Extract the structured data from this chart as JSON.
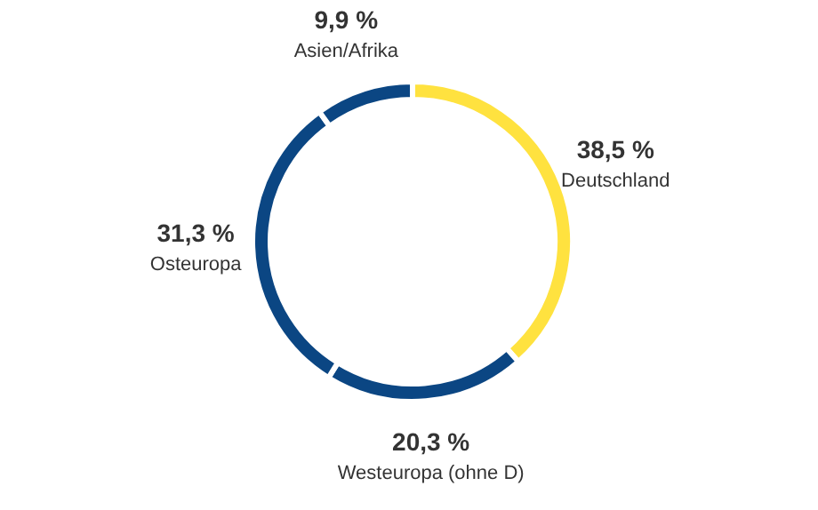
{
  "chart_data": {
    "type": "donut",
    "categories": [
      "Deutschland",
      "Westeuropa (ohne D)",
      "Osteuropa",
      "Asien/Afrika"
    ],
    "values": [
      38.5,
      20.3,
      31.3,
      9.9
    ],
    "value_labels": [
      "38,5 %",
      "20,3 %",
      "31,3 %",
      "9,9 %"
    ],
    "colors": [
      "#ffe23f",
      "#0b4683",
      "#0b4683",
      "#0b4683"
    ]
  }
}
